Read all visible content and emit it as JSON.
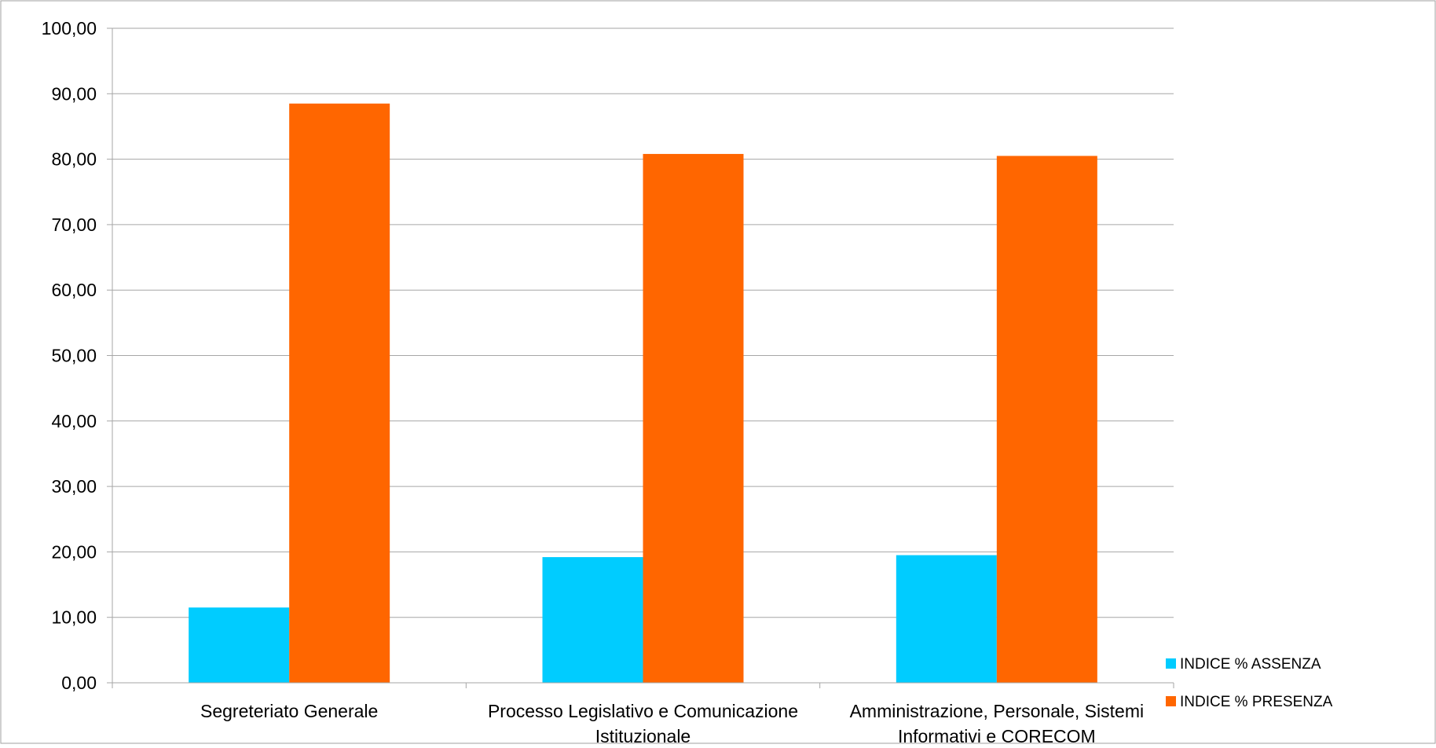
{
  "chart_data": {
    "type": "bar",
    "title": "",
    "xlabel": "",
    "ylabel": "",
    "categories": [
      "Segreteriato Generale",
      "Processo Legislativo e Comunicazione Istituzionale",
      "Amministrazione, Personale, Sistemi Informativi e CORECOM"
    ],
    "category_label_lines": [
      [
        "Segreteriato Generale"
      ],
      [
        "Processo Legislativo e Comunicazione",
        "Istituzionale"
      ],
      [
        "Amministrazione, Personale, Sistemi",
        "Informativi e CORECOM"
      ]
    ],
    "series": [
      {
        "name": "INDICE % ASSENZA",
        "color": "#00CCFF",
        "values": [
          11.5,
          19.2,
          19.5
        ]
      },
      {
        "name": "INDICE % PRESENZA",
        "color": "#FF6600",
        "values": [
          88.5,
          80.8,
          80.5
        ]
      }
    ],
    "ylim": [
      0,
      100
    ],
    "yticks": [
      0,
      10,
      20,
      30,
      40,
      50,
      60,
      70,
      80,
      90,
      100
    ],
    "ytick_labels": [
      "0,00",
      "10,00",
      "20,00",
      "30,00",
      "40,00",
      "50,00",
      "60,00",
      "70,00",
      "80,00",
      "90,00",
      "100,00"
    ],
    "grid": true,
    "legend_position": "bottom-right"
  }
}
